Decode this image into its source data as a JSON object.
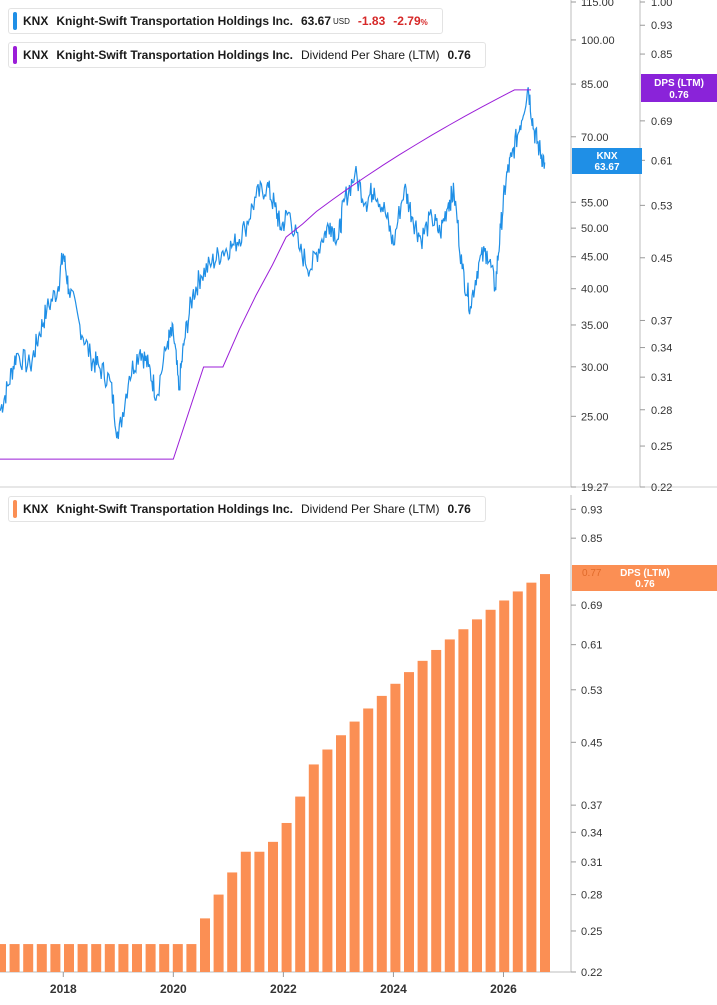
{
  "colors": {
    "price": "#1f8fe6",
    "dps_line": "#9b1ed8",
    "dps_bar": "#fb8f54",
    "dps_tag_top": "#8a23d9",
    "negative": "#d62828"
  },
  "legend_price": {
    "ticker": "KNX",
    "company": "Knight-Swift Transportation Holdings Inc.",
    "price": "63.67",
    "currency": "USD",
    "change": "-1.83",
    "change_pct": "-2.79",
    "pct_sign": "%"
  },
  "legend_dps_top": {
    "ticker": "KNX",
    "company": "Knight-Swift Transportation Holdings Inc.",
    "metric": "Dividend Per Share (LTM)",
    "value": "0.76"
  },
  "legend_dps_bottom": {
    "ticker": "KNX",
    "company": "Knight-Swift Transportation Holdings Inc.",
    "metric": "Dividend Per Share (LTM)",
    "value": "0.76"
  },
  "tags": {
    "knx": {
      "line1": "KNX",
      "line2": "63.67"
    },
    "dps_top": {
      "line1": "DPS (LTM)",
      "line2": "0.76"
    },
    "dps_bottom": {
      "line1": "DPS (LTM)",
      "line2": "0.76",
      "under": "0.77"
    }
  },
  "chart_data": [
    {
      "type": "line",
      "scale": "log",
      "x_range": [
        2016.85,
        2026.9
      ],
      "price_axis": {
        "ticks": [
          "115.00",
          "100.00",
          "85.00",
          "70.00",
          "55.00",
          "50.00",
          "45.00",
          "40.00",
          "35.00",
          "30.00",
          "25.00",
          "19.27"
        ],
        "ylim": [
          19.27,
          115
        ]
      },
      "dps_axis": {
        "ticks": [
          "1.00",
          "0.93",
          "0.85",
          "0.69",
          "0.61",
          "0.53",
          "0.45",
          "0.37",
          "0.34",
          "0.31",
          "0.28",
          "0.25",
          "0.22"
        ],
        "ylim": [
          0.22,
          1.0
        ]
      },
      "series": [
        {
          "name": "KNX",
          "x": [
            2016.85,
            2017.0,
            2017.15,
            2017.4,
            2017.55,
            2017.7,
            2017.9,
            2018.0,
            2018.1,
            2018.3,
            2018.5,
            2018.65,
            2018.85,
            2019.0,
            2019.2,
            2019.4,
            2019.55,
            2019.7,
            2019.9,
            2020.0,
            2020.1,
            2020.2,
            2020.35,
            2020.5,
            2020.7,
            2020.9,
            2021.1,
            2021.3,
            2021.5,
            2021.7,
            2021.85,
            2021.95,
            2022.1,
            2022.3,
            2022.5,
            2022.7,
            2022.85,
            2023.0,
            2023.1,
            2023.3,
            2023.5,
            2023.65,
            2023.85,
            2024.0,
            2024.2,
            2024.35,
            2024.5,
            2024.7,
            2024.85,
            2025.0,
            2025.1,
            2025.25,
            2025.4,
            2025.55,
            2025.7,
            2025.85,
            2025.95,
            2026.05,
            2026.15,
            2026.3,
            2026.45,
            2026.55,
            2026.65,
            2026.75
          ],
          "y": [
            25.5,
            28,
            31.5,
            30,
            33.5,
            37,
            40,
            45.5,
            40,
            35,
            31,
            30,
            28.5,
            23,
            29,
            32,
            30,
            27,
            33,
            34,
            27.5,
            33,
            39,
            42,
            44,
            46,
            47,
            50,
            56,
            58.5,
            54,
            50,
            53,
            46,
            43,
            48,
            51,
            48,
            55,
            61,
            55,
            58,
            53,
            47,
            58,
            52,
            48,
            52,
            49,
            55,
            57,
            43,
            37.5,
            44,
            46,
            40,
            50,
            60,
            65,
            73,
            84,
            72,
            67,
            63.67
          ]
        },
        {
          "name": "Dividend Per Share (LTM)",
          "x": [
            2016.85,
            2020.0,
            2020.55,
            2020.7,
            2020.9,
            2021.2,
            2021.5,
            2021.8,
            2022.05,
            2022.35,
            2022.6,
            2022.9,
            2023.2,
            2023.5,
            2023.8,
            2024.1,
            2024.4,
            2024.7,
            2025.0,
            2025.3,
            2025.6,
            2025.9,
            2026.2,
            2026.5
          ],
          "y": [
            0.24,
            0.24,
            0.32,
            0.32,
            0.32,
            0.36,
            0.4,
            0.44,
            0.48,
            0.5,
            0.52,
            0.54,
            0.56,
            0.58,
            0.6,
            0.62,
            0.64,
            0.66,
            0.68,
            0.7,
            0.72,
            0.74,
            0.76,
            0.76
          ]
        }
      ]
    },
    {
      "type": "bar",
      "scale": "log",
      "ylim": [
        0.22,
        1.0
      ],
      "y_ticks": [
        "0.93",
        "0.85",
        "0.69",
        "0.61",
        "0.53",
        "0.45",
        "0.37",
        "0.34",
        "0.31",
        "0.28",
        "0.25",
        "0.22"
      ],
      "x_ticks": [
        "2018",
        "2020",
        "2022",
        "2024",
        "2026"
      ],
      "series": [
        {
          "name": "Dividend Per Share (LTM)",
          "values": [
            0.24,
            0.24,
            0.24,
            0.24,
            0.24,
            0.24,
            0.24,
            0.24,
            0.24,
            0.24,
            0.24,
            0.24,
            0.24,
            0.24,
            0.24,
            0.26,
            0.28,
            0.3,
            0.32,
            0.32,
            0.33,
            0.35,
            0.38,
            0.42,
            0.44,
            0.46,
            0.48,
            0.5,
            0.52,
            0.54,
            0.56,
            0.58,
            0.6,
            0.62,
            0.64,
            0.66,
            0.68,
            0.7,
            0.72,
            0.74,
            0.76
          ]
        }
      ]
    }
  ]
}
